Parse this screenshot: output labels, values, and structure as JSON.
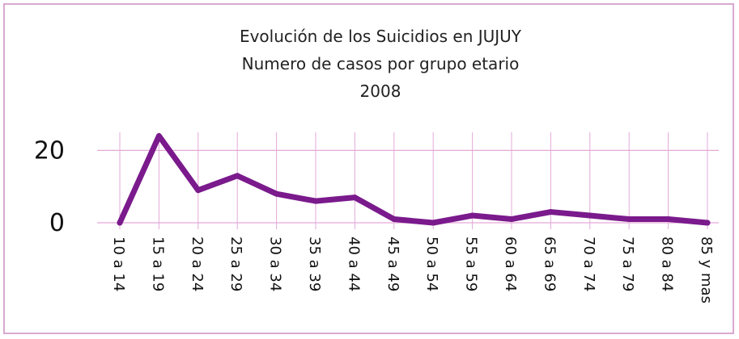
{
  "chart_data": {
    "type": "line",
    "title_lines": [
      "Evolución de los Suicidios en JUJUY",
      "Numero de casos por grupo etario",
      "2008"
    ],
    "xlabel": "",
    "ylabel": "",
    "categories": [
      "10 a 14",
      "15 a 19",
      "20 a 24",
      "25 a 29",
      "30 a 34",
      "35 a 39",
      "40 a 44",
      "45 a 49",
      "50 a 54",
      "55 a 59",
      "60 a 64",
      "65 a 69",
      "70 a 74",
      "75 a 79",
      "80 a 84",
      "85 y mas"
    ],
    "series": [
      {
        "values": [
          0,
          24,
          9,
          13,
          8,
          6,
          7,
          1,
          0,
          2,
          1,
          3,
          2,
          1,
          1,
          0
        ]
      }
    ],
    "yticks": [
      "0",
      "20"
    ],
    "ylim": [
      0,
      25
    ],
    "grid": true,
    "colors": {
      "line": "#7a1a8c",
      "grid": "#e3a9d8",
      "frame": "#d9a8d0"
    }
  }
}
